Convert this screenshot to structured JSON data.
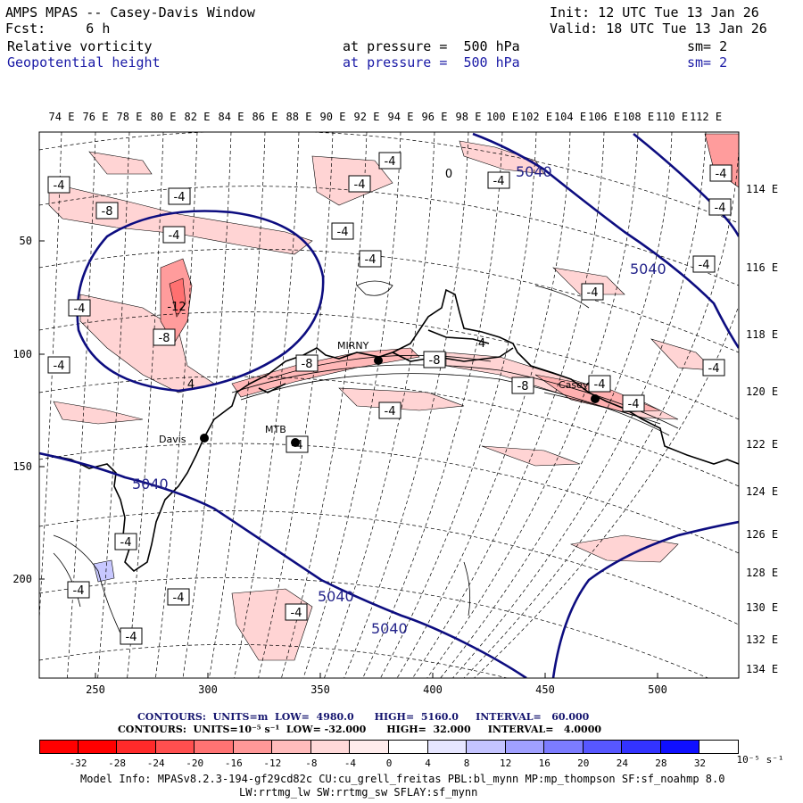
{
  "header": {
    "line1_left": "AMPS MPAS -- Casey-Davis Window",
    "line1_right": "Init: 12 UTC Tue 13 Jan 26",
    "line2_left": "Fcst:     6 h",
    "line2_right": "Valid: 18 UTC Tue 13 Jan 26",
    "field1_name": "Relative vorticity",
    "field1_level": "at pressure =  500 hPa",
    "field1_sm": "sm= 2",
    "field2_name": "Geopotential height",
    "field2_level": "at pressure =  500 hPa",
    "field2_sm": "sm= 2"
  },
  "map": {
    "top_lon_labels": [
      "74 E",
      "76 E",
      "78 E",
      "80 E",
      "82 E",
      "84 E",
      "86 E",
      "88 E",
      "90 E",
      "92 E",
      "94 E",
      "96 E",
      "98 E",
      "100 E",
      "102 E",
      "104 E",
      "106 E",
      "108 E",
      "110 E",
      "112 E"
    ],
    "right_lon_labels": [
      "114 E",
      "116 E",
      "118 E",
      "120 E",
      "122 E",
      "124 E",
      "126 E",
      "128 E",
      "130 E",
      "132 E",
      "134 E"
    ],
    "left_y_ticks": [
      "50",
      "100",
      "150",
      "200"
    ],
    "bottom_x_ticks": [
      "250",
      "300",
      "350",
      "400",
      "450",
      "500"
    ],
    "stations": [
      "Davis",
      "MTB",
      "MIRNY",
      "Casey"
    ],
    "height_contour_labels": [
      "5040",
      "5040",
      "5040",
      "5040",
      "5040"
    ],
    "vorticity_labels": [
      "-4",
      "-8",
      "-4",
      "-4",
      "-4",
      "-4",
      "-4",
      "-4",
      "-4",
      "-4",
      "-8",
      "-4",
      "-4",
      "-4",
      "-4",
      "-4",
      "-8",
      "-8",
      "-8",
      "-4",
      "-4",
      "-4",
      "-4",
      "-4",
      "-4",
      "-4",
      "-4",
      "-4",
      "-4",
      "0",
      "4",
      "-12",
      "4"
    ]
  },
  "footer": {
    "contours1": "CONTOURS:  UNITS=m  LOW=  4980.0      HIGH=  5160.0     INTERVAL=   60.000",
    "contours2": "CONTOURS:  UNITS=10⁻⁵ s⁻¹  LOW= -32.000      HIGH=  32.000     INTERVAL=   4.0000",
    "colorbar_labels": [
      "-32",
      "-28",
      "-24",
      "-20",
      "-16",
      "-12",
      "-8",
      "-4",
      "0",
      "4",
      "8",
      "12",
      "16",
      "20",
      "24",
      "28",
      "32"
    ],
    "colorbar_units": "10⁻⁵ s⁻¹",
    "colorbar_colors": [
      "#ff0000",
      "#ff2a2a",
      "#ff4f4f",
      "#ff7373",
      "#ff9898",
      "#ffbcbc",
      "#ffd9d9",
      "#ffecec",
      "#ffffff",
      "#ffffff",
      "#e6e6ff",
      "#c4c4ff",
      "#a0a0ff",
      "#7c7cff",
      "#5757ff",
      "#3333ff",
      "#0f0fff"
    ],
    "model_info1": "Model Info: MPASv8.2.3-194-gf29cd82c CU:cu_grell_freitas PBL:bl_mynn MP:mp_thompson SF:sf_noahmp 8.0",
    "model_info2": "LW:rrtmg_lw SW:rrtmg_sw SFLAY:sf_mynn"
  }
}
